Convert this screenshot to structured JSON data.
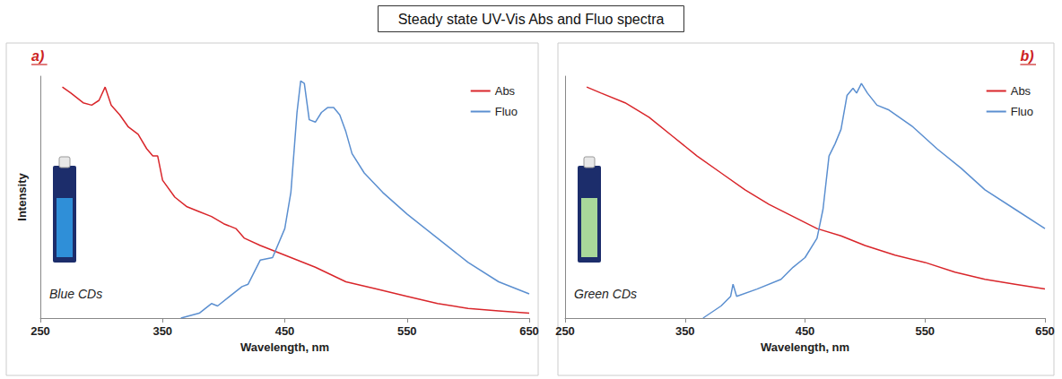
{
  "title": "Steady state UV-Vis Abs and Fluo spectra",
  "chart_data": [
    {
      "type": "line",
      "label": "a)",
      "annotations": [
        "Blue CDs"
      ],
      "xlabel": "Wavelength, nm",
      "ylabel": "Intensity",
      "xlim": [
        250,
        650
      ],
      "xticks": [
        250,
        350,
        450,
        550,
        650
      ],
      "ylim": [
        0,
        100
      ],
      "yticks": [],
      "tick_labels": "x",
      "grid": false,
      "legend": "upper right",
      "series": [
        {
          "name": "Abs",
          "color": "#d9262b",
          "x": [
            268,
            275,
            285,
            292,
            298,
            303,
            308,
            315,
            322,
            330,
            337,
            342,
            346,
            350,
            360,
            370,
            380,
            390,
            400,
            410,
            417,
            430,
            450,
            475,
            500,
            525,
            550,
            575,
            600,
            625,
            650
          ],
          "values": [
            95.5,
            93,
            89,
            88,
            90,
            95.5,
            88,
            84,
            79,
            76,
            70,
            67,
            67,
            57,
            50,
            46,
            44,
            42,
            39,
            37,
            33,
            30,
            26,
            21,
            15,
            12,
            9,
            6,
            4,
            3,
            2
          ]
        },
        {
          "name": "Fluo",
          "color": "#5b8fd0",
          "x": [
            365,
            380,
            390,
            395,
            405,
            415,
            420,
            430,
            440,
            450,
            455,
            460,
            463,
            466,
            470,
            475,
            480,
            485,
            490,
            495,
            500,
            505,
            515,
            530,
            550,
            575,
            600,
            625,
            650
          ],
          "values": [
            0,
            2,
            6,
            5,
            9,
            13,
            14,
            24,
            25,
            37,
            52,
            85,
            98,
            97,
            82,
            81,
            85,
            87,
            87,
            84,
            77,
            68,
            60,
            52,
            43,
            33,
            23,
            15,
            10
          ]
        }
      ]
    },
    {
      "type": "line",
      "label": "b)",
      "annotations": [
        "Green CDs"
      ],
      "xlabel": "Wavelength, nm",
      "xlim": [
        250,
        650
      ],
      "xticks": [
        250,
        350,
        450,
        550,
        650
      ],
      "ylim": [
        0,
        100
      ],
      "yticks": [],
      "tick_labels": "x",
      "grid": false,
      "legend": "upper right",
      "series": [
        {
          "name": "Abs",
          "color": "#d9262b",
          "x": [
            268,
            280,
            300,
            320,
            340,
            360,
            380,
            400,
            420,
            440,
            460,
            480,
            500,
            525,
            550,
            575,
            600,
            625,
            650
          ],
          "values": [
            95.5,
            93,
            89,
            83,
            75,
            67,
            60,
            53,
            47,
            42,
            37,
            34,
            30,
            26,
            23,
            19,
            16,
            14,
            12
          ]
        },
        {
          "name": "Fluo",
          "color": "#5b8fd0",
          "x": [
            365,
            380,
            388,
            390,
            393,
            410,
            430,
            440,
            450,
            460,
            465,
            470,
            475,
            480,
            485,
            490,
            493,
            497,
            502,
            510,
            520,
            540,
            560,
            580,
            600,
            625,
            650
          ],
          "values": [
            0,
            5,
            9,
            14,
            9,
            12,
            16,
            21,
            25,
            33,
            45,
            67,
            72,
            78,
            92,
            95,
            93,
            97,
            93,
            88,
            86,
            79,
            70,
            62,
            53,
            45,
            37
          ]
        }
      ]
    }
  ]
}
